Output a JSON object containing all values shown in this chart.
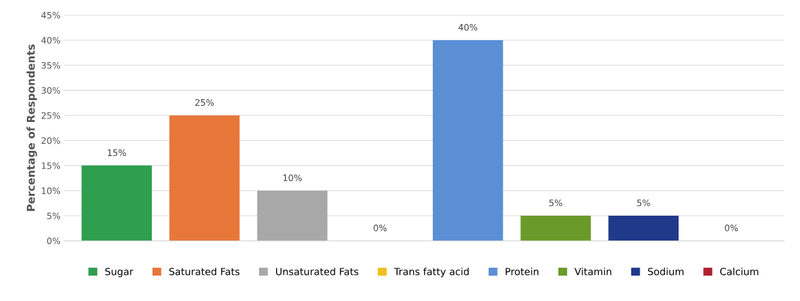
{
  "chart_data": {
    "type": "bar",
    "ylabel": "Percentage of Respondents",
    "categories": [
      null,
      null,
      null,
      null,
      null,
      null,
      null,
      null
    ],
    "ylim": [
      0,
      45
    ],
    "yticks": [
      {
        "value": 0,
        "label": "0%"
      },
      {
        "value": 5,
        "label": "5%"
      },
      {
        "value": 10,
        "label": "10%"
      },
      {
        "value": 15,
        "label": "15%"
      },
      {
        "value": 20,
        "label": "20%"
      },
      {
        "value": 25,
        "label": "25%"
      },
      {
        "value": 30,
        "label": "30%"
      },
      {
        "value": 35,
        "label": "35%"
      },
      {
        "value": 40,
        "label": "40%"
      },
      {
        "value": 45,
        "label": "45%"
      }
    ],
    "grid": "y",
    "legend": "bottom",
    "series": [
      {
        "name": "Sugar",
        "color": "#2e9e4f",
        "values": [
          15,
          null,
          null,
          null,
          null,
          null,
          null,
          null
        ],
        "value_labels": [
          "15%",
          null,
          null,
          null,
          null,
          null,
          null,
          null
        ]
      },
      {
        "name": "Saturated Fats",
        "color": "#e8773a",
        "values": [
          null,
          25,
          null,
          null,
          null,
          null,
          null,
          null
        ],
        "value_labels": [
          null,
          "25%",
          null,
          null,
          null,
          null,
          null,
          null
        ]
      },
      {
        "name": "Unsaturated Fats",
        "color": "#a8a8a8",
        "values": [
          null,
          null,
          10,
          null,
          null,
          null,
          null,
          null
        ],
        "value_labels": [
          null,
          null,
          "10%",
          null,
          null,
          null,
          null,
          null
        ]
      },
      {
        "name": "Trans fatty acid",
        "color": "#f0c020",
        "values": [
          null,
          null,
          null,
          0,
          null,
          null,
          null,
          null
        ],
        "value_labels": [
          null,
          null,
          null,
          "0%",
          null,
          null,
          null,
          null
        ]
      },
      {
        "name": "Protein",
        "color": "#5b8fd4",
        "values": [
          null,
          null,
          null,
          null,
          40,
          null,
          null,
          null
        ],
        "value_labels": [
          null,
          null,
          null,
          null,
          "40%",
          null,
          null,
          null
        ]
      },
      {
        "name": "Vitamin",
        "color": "#6a9a2a",
        "values": [
          null,
          null,
          null,
          null,
          null,
          5,
          null,
          null
        ],
        "value_labels": [
          null,
          null,
          null,
          null,
          null,
          "5%",
          null,
          null
        ]
      },
      {
        "name": "Sodium",
        "color": "#1f3a8a",
        "values": [
          null,
          null,
          null,
          null,
          null,
          null,
          5,
          null
        ],
        "value_labels": [
          null,
          null,
          null,
          null,
          null,
          null,
          "5%",
          null
        ]
      },
      {
        "name": "Calcium",
        "color": "#b02030",
        "values": [
          null,
          null,
          null,
          null,
          null,
          null,
          null,
          0
        ],
        "value_labels": [
          null,
          null,
          null,
          null,
          null,
          null,
          null,
          "0%"
        ]
      }
    ]
  }
}
